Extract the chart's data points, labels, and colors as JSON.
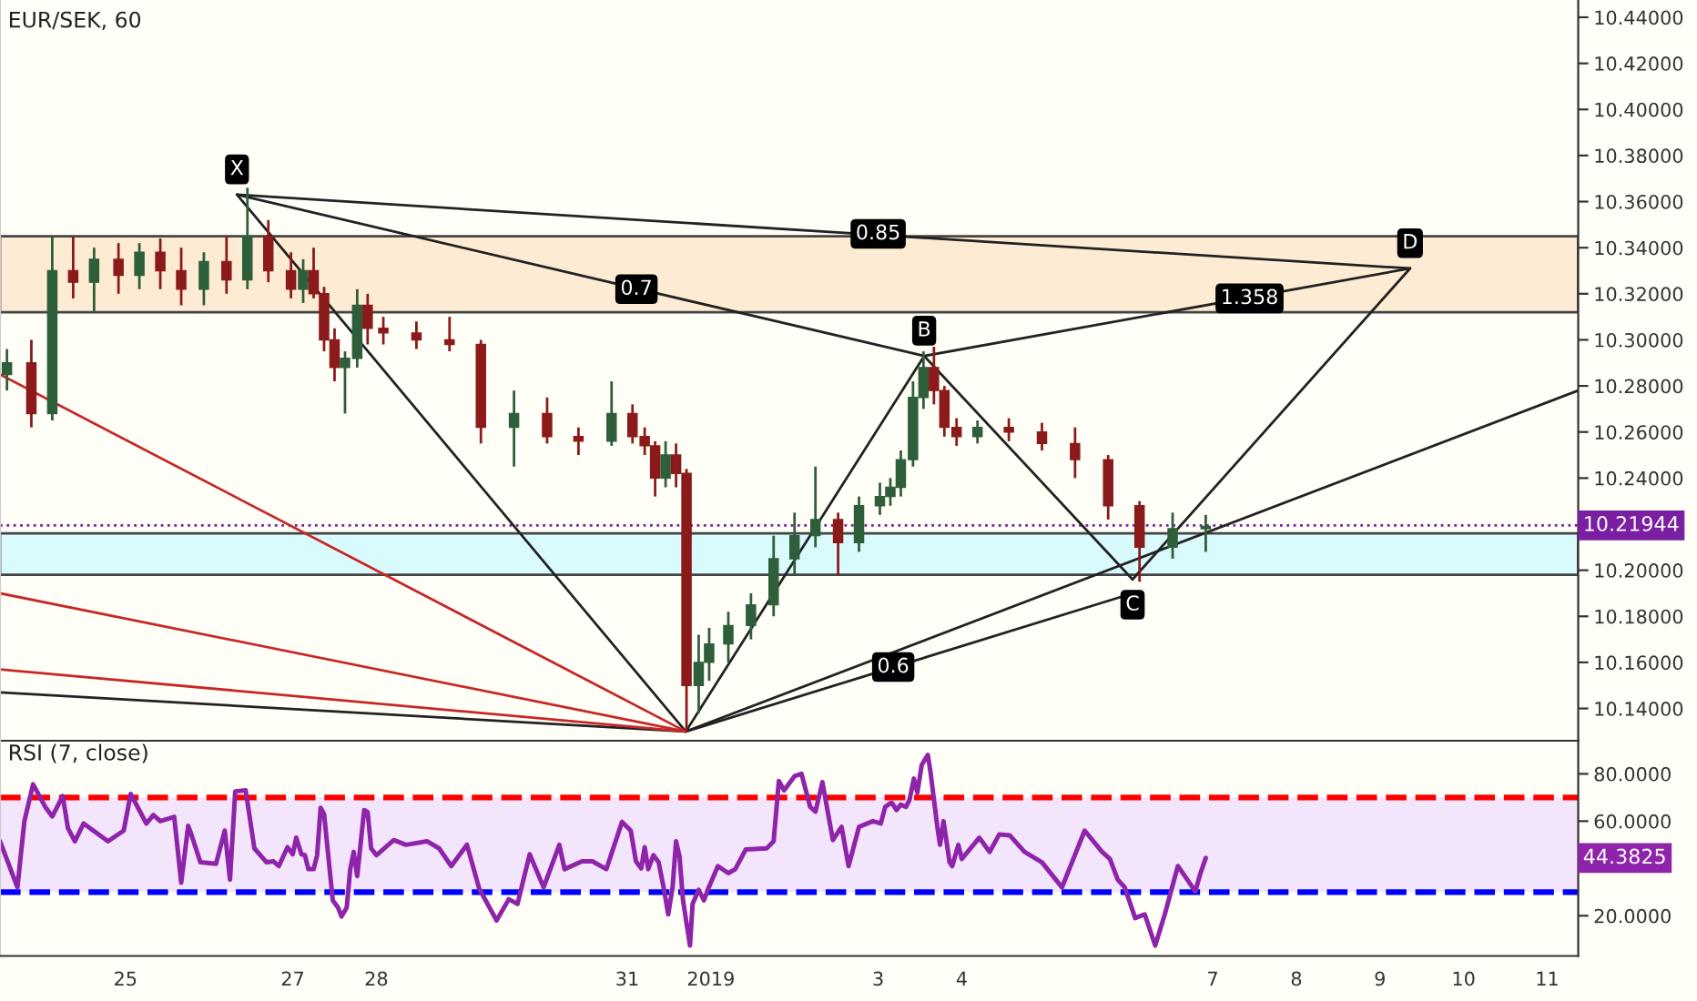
{
  "chart_data": [
    {
      "type": "candlestick",
      "title": "EUR/SEK, 60",
      "x": [
        "2018-12-23T14:00",
        "2018-12-23T21:00",
        "2018-12-24T03:00",
        "2018-12-24T09:00",
        "2018-12-24T15:00",
        "2018-12-24T22:00",
        "2018-12-25T04:00",
        "2018-12-25T10:00",
        "2018-12-25T16:00",
        "2018-12-25T22:30",
        "2018-12-26T05:00",
        "2018-12-26T11:00",
        "2018-12-26T17:00",
        "2018-12-26T23:30",
        "2018-12-27T03:00",
        "2018-12-27T06:00",
        "2018-12-27T09:00",
        "2018-12-27T12:00",
        "2018-12-27T15:00",
        "2018-12-27T18:30",
        "2018-12-27T21:30",
        "2018-12-28T02:00",
        "2018-12-28T11:30",
        "2018-12-28T21:00",
        "2018-12-29T06:00",
        "2018-12-29T15:30",
        "2018-12-30T01:00",
        "2018-12-30T10:00",
        "2018-12-30T19:30",
        "2018-12-31T01:30",
        "2018-12-31T05:00",
        "2018-12-31T08:00",
        "2018-12-31T11:00",
        "2018-12-31T14:00",
        "2018-12-31T17:00",
        "2018-12-31T20:30",
        "2018-12-31T23:30",
        "2019-01-01T05:00",
        "2019-01-01T11:30",
        "2019-01-01T18:00",
        "2019-01-02T00:00",
        "2019-01-02T06:00",
        "2019-01-02T12:30",
        "2019-01-02T18:30",
        "2019-01-03T00:30",
        "2019-01-03T03:30",
        "2019-01-03T06:30",
        "2019-01-03T10:00",
        "2019-01-03T13:00",
        "2019-01-03T16:00",
        "2019-01-03T19:00",
        "2019-01-03T22:30",
        "2019-01-04T04:30",
        "2019-01-04T13:30",
        "2019-01-04T23:00",
        "2019-01-05T08:30",
        "2019-01-05T18:00",
        "2019-01-06T03:00",
        "2019-01-06T12:30",
        "2019-01-06T22:00"
      ],
      "ohlc": [
        [
          10.285,
          10.296,
          10.278,
          10.29
        ],
        [
          10.29,
          10.3,
          10.262,
          10.268
        ],
        [
          10.268,
          10.345,
          10.265,
          10.33
        ],
        [
          10.33,
          10.345,
          10.318,
          10.325
        ],
        [
          10.325,
          10.34,
          10.312,
          10.335
        ],
        [
          10.335,
          10.342,
          10.32,
          10.328
        ],
        [
          10.328,
          10.342,
          10.322,
          10.338
        ],
        [
          10.338,
          10.344,
          10.322,
          10.33
        ],
        [
          10.33,
          10.34,
          10.315,
          10.322
        ],
        [
          10.322,
          10.338,
          10.315,
          10.334
        ],
        [
          10.334,
          10.345,
          10.32,
          10.326
        ],
        [
          10.326,
          10.366,
          10.322,
          10.345
        ],
        [
          10.345,
          10.352,
          10.325,
          10.33
        ],
        [
          10.33,
          10.338,
          10.318,
          10.322
        ],
        [
          10.322,
          10.335,
          10.316,
          10.33
        ],
        [
          10.33,
          10.34,
          10.318,
          10.32
        ],
        [
          10.32,
          10.323,
          10.295,
          10.3
        ],
        [
          10.3,
          10.305,
          10.282,
          10.288
        ],
        [
          10.288,
          10.295,
          10.268,
          10.292
        ],
        [
          10.292,
          10.322,
          10.288,
          10.315
        ],
        [
          10.315,
          10.32,
          10.298,
          10.305
        ],
        [
          10.305,
          10.31,
          10.298,
          10.303
        ],
        [
          10.303,
          10.308,
          10.296,
          10.3
        ],
        [
          10.3,
          10.31,
          10.295,
          10.298
        ],
        [
          10.298,
          10.3,
          10.255,
          10.262
        ],
        [
          10.262,
          10.278,
          10.245,
          10.268
        ],
        [
          10.268,
          10.275,
          10.255,
          10.258
        ],
        [
          10.258,
          10.262,
          10.25,
          10.256
        ],
        [
          10.256,
          10.282,
          10.254,
          10.268
        ],
        [
          10.268,
          10.272,
          10.255,
          10.258
        ],
        [
          10.258,
          10.262,
          10.25,
          10.254
        ],
        [
          10.254,
          10.256,
          10.232,
          10.24
        ],
        [
          10.24,
          10.256,
          10.236,
          10.25
        ],
        [
          10.25,
          10.255,
          10.236,
          10.242
        ],
        [
          10.242,
          10.244,
          10.13,
          10.15
        ],
        [
          10.15,
          10.172,
          10.138,
          10.16
        ],
        [
          10.16,
          10.175,
          10.152,
          10.168
        ],
        [
          10.168,
          10.182,
          10.16,
          10.176
        ],
        [
          10.176,
          10.19,
          10.17,
          10.185
        ],
        [
          10.185,
          10.215,
          10.18,
          10.205
        ],
        [
          10.205,
          10.225,
          10.198,
          10.215
        ],
        [
          10.215,
          10.245,
          10.21,
          10.222
        ],
        [
          10.222,
          10.225,
          10.198,
          10.212
        ],
        [
          10.212,
          10.232,
          10.208,
          10.228
        ],
        [
          10.228,
          10.238,
          10.224,
          10.232
        ],
        [
          10.232,
          10.24,
          10.228,
          10.236
        ],
        [
          10.236,
          10.252,
          10.232,
          10.248
        ],
        [
          10.248,
          10.282,
          10.245,
          10.275
        ],
        [
          10.275,
          10.295,
          10.27,
          10.288
        ],
        [
          10.288,
          10.297,
          10.272,
          10.278
        ],
        [
          10.278,
          10.28,
          10.258,
          10.262
        ],
        [
          10.262,
          10.266,
          10.254,
          10.258
        ],
        [
          10.258,
          10.265,
          10.255,
          10.262
        ],
        [
          10.262,
          10.266,
          10.256,
          10.26
        ],
        [
          10.26,
          10.264,
          10.252,
          10.255
        ],
        [
          10.255,
          10.262,
          10.24,
          10.248
        ],
        [
          10.248,
          10.25,
          10.222,
          10.228
        ],
        [
          10.228,
          10.23,
          10.195,
          10.21
        ],
        [
          10.21,
          10.225,
          10.205,
          10.218
        ],
        [
          10.218,
          10.224,
          10.208,
          10.219
        ]
      ],
      "series": [
        {
          "type": "line",
          "color": "#222222",
          "x": [
            "2018-12-26T08:00",
            "2018-12-31T16:48",
            "2019-01-03T13:12",
            "2019-01-06T01:00",
            "2019-01-09T08:38"
          ],
          "values": [
            10.363,
            10.13,
            10.293,
            10.196,
            10.331
          ]
        },
        {
          "type": "line",
          "color": "#222222",
          "x": [
            "2018-12-26T08:00",
            "2019-01-03T13:12",
            "2019-01-09T08:38"
          ],
          "values": [
            10.363,
            10.293,
            10.331
          ]
        },
        {
          "type": "line",
          "color": "#222222",
          "x": [
            "2018-12-26T08:00",
            "2019-01-09T08:38"
          ],
          "values": [
            10.363,
            10.331
          ]
        },
        {
          "type": "line",
          "color": "#222222",
          "x": [
            "2018-12-31T16:48",
            "2019-01-06T01:00"
          ],
          "values": [
            10.13,
            10.19
          ]
        },
        {
          "type": "line",
          "color": "#222222",
          "x": [
            "2018-12-23T12:00",
            "2018-12-31T16:48",
            "2019-01-11T08:53"
          ],
          "values": [
            10.147,
            10.13,
            10.278
          ]
        },
        {
          "type": "line",
          "color": "#c62828",
          "x": [
            "2018-12-23T12:00",
            "2018-12-31T16:48"
          ],
          "values": [
            10.285,
            10.13
          ]
        },
        {
          "type": "line",
          "color": "#c62828",
          "x": [
            "2018-12-23T12:00",
            "2018-12-31T16:48"
          ],
          "values": [
            10.19,
            10.13
          ]
        },
        {
          "type": "line",
          "color": "#c62828",
          "x": [
            "2018-12-23T12:00",
            "2018-12-31T16:48"
          ],
          "values": [
            10.157,
            10.13
          ]
        }
      ],
      "bands": [
        {
          "axis": "y",
          "from": 10.312,
          "to": 10.345,
          "color": "#fdebd3"
        },
        {
          "axis": "y",
          "from": 10.198,
          "to": 10.216,
          "color": "#d9fbfd"
        }
      ],
      "ref_lines": [
        {
          "axis": "y",
          "value": 10.21944,
          "label": "10.21944",
          "color": "#7b1fa2",
          "line_style": "dotted"
        }
      ],
      "annotations": [
        {
          "text": "X",
          "x": "2018-12-26T08:00",
          "y": 10.363
        },
        {
          "text": "B",
          "x": "2019-01-03T13:12",
          "y": 10.293
        },
        {
          "text": "C",
          "x": "2019-01-06T01:00",
          "y": 10.196
        },
        {
          "text": "D",
          "x": "2019-01-09T08:38",
          "y": 10.331
        },
        {
          "text": "0.7",
          "x": "2018-12-31T02:38",
          "y": 10.322
        },
        {
          "text": "0.85",
          "x": "2019-01-03T00:00",
          "y": 10.346
        },
        {
          "text": "1.358",
          "x": "2019-01-07T10:34",
          "y": 10.318
        },
        {
          "text": "0.6",
          "x": "2019-01-03T04:19",
          "y": 10.158
        }
      ],
      "xlim": [
        "2018-12-23T12:00",
        "2019-01-11T08:53"
      ],
      "ylim": [
        10.126,
        10.4475
      ],
      "xticks": [
        {
          "value": "2018-12-25",
          "label": null
        },
        {
          "value": "2018-12-27",
          "label": null
        },
        {
          "value": "2018-12-28",
          "label": null
        },
        {
          "value": "2018-12-31",
          "label": null
        },
        {
          "value": "2019-01-01",
          "label": null
        },
        {
          "value": "2019-01-03",
          "label": null
        },
        {
          "value": "2019-01-04",
          "label": null
        },
        {
          "value": "2019-01-07",
          "label": null
        },
        {
          "value": "2019-01-08",
          "label": null
        },
        {
          "value": "2019-01-09",
          "label": null
        },
        {
          "value": "2019-01-10",
          "label": null
        },
        {
          "value": "2019-01-11",
          "label": null
        }
      ],
      "yticks": [
        {
          "value": 10.14,
          "label": "10.14000"
        },
        {
          "value": 10.16,
          "label": "10.16000"
        },
        {
          "value": 10.18,
          "label": "10.18000"
        },
        {
          "value": 10.2,
          "label": "10.20000"
        },
        {
          "value": 10.24,
          "label": "10.24000"
        },
        {
          "value": 10.26,
          "label": "10.26000"
        },
        {
          "value": 10.28,
          "label": "10.28000"
        },
        {
          "value": 10.3,
          "label": "10.30000"
        },
        {
          "value": 10.32,
          "label": "10.32000"
        },
        {
          "value": 10.34,
          "label": "10.34000"
        },
        {
          "value": 10.36,
          "label": "10.36000"
        },
        {
          "value": 10.38,
          "label": "10.38000"
        },
        {
          "value": 10.4,
          "label": "10.40000"
        },
        {
          "value": 10.42,
          "label": "10.42000"
        },
        {
          "value": 10.44,
          "label": "10.44000"
        }
      ],
      "tick_labels": "y"
    },
    {
      "type": "line",
      "title": "RSI (7, close)",
      "series": [
        {
          "color": "#8e24aa",
          "x": [
            "2018-12-23T12:00",
            "2018-12-23T17:00",
            "2018-12-23T19:00",
            "2018-12-23T21:30",
            "2018-12-24T01:00",
            "2018-12-24T03:00",
            "2018-12-24T06:00",
            "2018-12-24T07:30",
            "2018-12-24T09:30",
            "2018-12-24T12:00",
            "2018-12-24T19:00",
            "2018-12-24T23:30",
            "2018-12-25T01:30",
            "2018-12-25T06:00",
            "2018-12-25T08:00",
            "2018-12-25T10:00",
            "2018-12-25T14:00",
            "2018-12-25T16:00",
            "2018-12-25T18:00",
            "2018-12-25T19:00",
            "2018-12-25T21:30",
            "2018-12-26T02:00",
            "2018-12-26T04:30",
            "2018-12-26T06:00",
            "2018-12-26T07:30",
            "2018-12-26T10:30",
            "2018-12-26T13:00",
            "2018-12-26T16:30",
            "2018-12-26T18:30",
            "2018-12-26T20:00",
            "2018-12-26T22:30",
            "2018-12-27T00:00",
            "2018-12-27T01:00",
            "2018-12-27T02:30",
            "2018-12-27T03:30",
            "2018-12-27T04:30",
            "2018-12-27T06:00",
            "2018-12-27T07:00",
            "2018-12-27T08:00",
            "2018-12-27T09:00",
            "2018-12-27T11:30",
            "2018-12-27T13:00",
            "2018-12-27T14:00",
            "2018-12-27T15:30",
            "2018-12-27T16:30",
            "2018-12-27T17:30",
            "2018-12-27T18:30",
            "2018-12-27T20:30",
            "2018-12-27T21:30",
            "2018-12-27T22:30",
            "2018-12-28T00:00",
            "2018-12-28T05:00",
            "2018-12-28T08:30",
            "2018-12-28T14:30",
            "2018-12-28T18:00",
            "2018-12-28T21:30",
            "2018-12-29T02:00",
            "2018-12-29T05:30",
            "2018-12-29T10:30",
            "2018-12-29T14:00",
            "2018-12-29T16:30",
            "2018-12-29T20:00",
            "2018-12-30T00:00",
            "2018-12-30T04:30",
            "2018-12-30T06:00",
            "2018-12-30T11:00",
            "2018-12-30T14:00",
            "2018-12-30T18:00",
            "2018-12-30T22:30",
            "2018-12-31T01:00",
            "2018-12-31T02:30",
            "2018-12-31T04:00",
            "2018-12-31T05:00",
            "2018-12-31T06:00",
            "2018-12-31T07:30",
            "2018-12-31T09:00",
            "2018-12-31T10:30",
            "2018-12-31T11:45",
            "2018-12-31T13:00",
            "2018-12-31T14:00",
            "2018-12-31T15:00",
            "2018-12-31T16:00",
            "2018-12-31T18:00",
            "2018-12-31T18:45",
            "2018-12-31T20:30",
            "2018-12-31T22:00",
            "2018-12-31T23:15",
            "2019-01-01T02:00",
            "2019-01-01T05:00",
            "2019-01-01T07:00",
            "2019-01-01T10:00",
            "2019-01-01T16:00",
            "2019-01-01T18:00",
            "2019-01-01T19:30",
            "2019-01-01T21:00",
            "2019-01-02T00:00",
            "2019-01-02T02:00",
            "2019-01-02T04:30",
            "2019-01-02T06:00",
            "2019-01-02T08:00",
            "2019-01-02T11:00",
            "2019-01-02T13:30",
            "2019-01-02T15:30",
            "2019-01-02T18:30",
            "2019-01-02T22:30",
            "2019-01-03T00:45",
            "2019-01-03T02:00",
            "2019-01-03T03:30",
            "2019-01-03T04:00",
            "2019-01-03T05:15",
            "2019-01-03T06:30",
            "2019-01-03T08:00",
            "2019-01-03T09:00",
            "2019-01-03T10:15",
            "2019-01-03T11:15",
            "2019-01-03T12:30",
            "2019-01-03T14:15",
            "2019-01-03T15:00",
            "2019-01-03T17:00",
            "2019-01-03T17:45",
            "2019-01-03T18:45",
            "2019-01-03T20:30",
            "2019-01-03T21:15",
            "2019-01-03T23:00",
            "2019-01-04T00:00",
            "2019-01-04T05:00",
            "2019-01-04T08:00",
            "2019-01-04T10:45",
            "2019-01-04T13:45",
            "2019-01-04T18:00",
            "2019-01-04T23:00",
            "2019-01-05T04:45",
            "2019-01-05T11:15",
            "2019-01-05T16:15",
            "2019-01-05T18:30",
            "2019-01-05T20:45",
            "2019-01-05T22:45",
            "2019-01-06T01:45",
            "2019-01-06T04:30",
            "2019-01-06T07:30",
            "2019-01-06T10:15",
            "2019-01-06T14:00",
            "2019-01-06T16:00",
            "2019-01-06T19:00",
            "2019-01-06T20:30",
            "2019-01-06T22:00"
          ],
          "values": [
            51.5,
            32,
            60,
            75.6,
            66,
            62,
            70.6,
            57,
            51.5,
            59,
            51.5,
            56,
            71.5,
            59,
            62.6,
            60,
            61.8,
            34,
            58,
            54,
            42.6,
            42,
            56,
            35.3,
            72.6,
            73,
            48.5,
            42.6,
            43,
            41,
            49,
            46,
            53,
            46,
            45.6,
            39.7,
            39.7,
            45.6,
            65.6,
            63,
            26.5,
            23.5,
            19.7,
            23.5,
            39.7,
            47,
            36.8,
            64.7,
            63.8,
            48.5,
            45.6,
            52,
            50,
            51.5,
            48.5,
            41,
            50,
            31.5,
            18,
            27,
            25,
            46,
            32,
            50,
            39.7,
            43,
            43,
            39.7,
            59.7,
            56,
            43,
            40,
            49,
            39.7,
            45.6,
            42.6,
            31.5,
            20.6,
            32,
            51.5,
            45,
            26.5,
            7.4,
            25,
            31,
            26.5,
            31.5,
            41,
            38,
            39.7,
            48,
            48.5,
            51.5,
            77,
            73,
            79,
            80,
            66,
            64,
            76.5,
            52,
            57.6,
            41,
            57.6,
            60,
            59,
            66,
            67.6,
            67.6,
            64.7,
            67,
            66,
            69,
            78,
            72,
            83.8,
            88,
            80.9,
            57.4,
            50,
            60,
            42.6,
            41,
            50,
            44,
            53,
            47,
            54.4,
            54,
            47,
            42.6,
            32,
            56,
            47,
            44,
            35.3,
            32,
            19,
            20.6,
            7.4,
            20.6,
            41,
            36.8,
            30.3,
            38,
            44.4
          ]
        }
      ],
      "bands": [
        {
          "axis": "y",
          "from": 30,
          "to": 70,
          "color": "#f3e5fb"
        }
      ],
      "ref_lines": [
        {
          "axis": "y",
          "value": 70,
          "color": "#ff0000",
          "line_style": "dashed"
        },
        {
          "axis": "y",
          "value": 30,
          "color": "#0000ff",
          "line_style": "dashed"
        }
      ],
      "annotations": [
        "44.3825"
      ],
      "xlim": [
        "2018-12-23T12:00",
        "2019-01-11T08:53"
      ],
      "ylim": [
        3,
        94
      ],
      "xticks": [
        {
          "value": "2018-12-25",
          "label": "25"
        },
        {
          "value": "2018-12-27",
          "label": "27"
        },
        {
          "value": "2018-12-28",
          "label": "28"
        },
        {
          "value": "2018-12-31",
          "label": "31"
        },
        {
          "value": "2019-01-01",
          "label": "2019"
        },
        {
          "value": "2019-01-03",
          "label": "3"
        },
        {
          "value": "2019-01-04",
          "label": "4"
        },
        {
          "value": "2019-01-07",
          "label": "7"
        },
        {
          "value": "2019-01-08",
          "label": "8"
        },
        {
          "value": "2019-01-09",
          "label": "9"
        },
        {
          "value": "2019-01-10",
          "label": "10"
        },
        {
          "value": "2019-01-11",
          "label": "11"
        }
      ],
      "yticks": [
        {
          "value": 20,
          "label": "20.0000"
        },
        {
          "value": 40,
          "label": null
        },
        {
          "value": 60,
          "label": "60.0000"
        },
        {
          "value": 80,
          "label": "80.0000"
        }
      ]
    }
  ]
}
